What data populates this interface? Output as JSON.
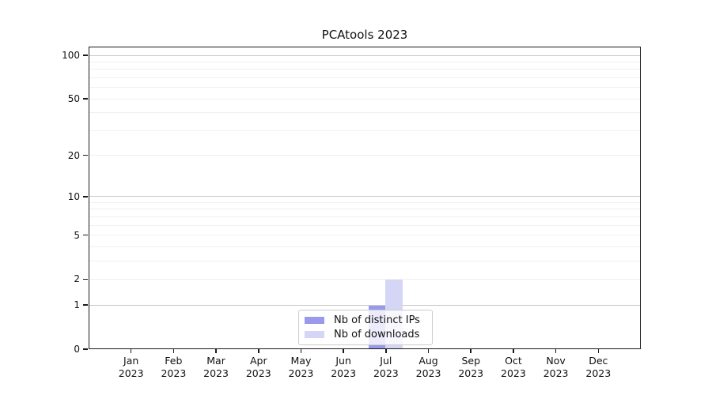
{
  "chart_data": {
    "type": "bar",
    "title": "PCAtools 2023",
    "categories": [
      "Jan",
      "Feb",
      "Mar",
      "Apr",
      "May",
      "Jun",
      "Jul",
      "Aug",
      "Sep",
      "Oct",
      "Nov",
      "Dec"
    ],
    "year_label": "2023",
    "series": [
      {
        "name": "Nb of distinct IPs",
        "color": "#9a9aec",
        "values": [
          0,
          0,
          0,
          0,
          0,
          0,
          1,
          0,
          0,
          0,
          0,
          0
        ]
      },
      {
        "name": "Nb of downloads",
        "color": "#d5d5f6",
        "values": [
          0,
          0,
          0,
          0,
          0,
          0,
          2,
          0,
          0,
          0,
          0,
          0
        ]
      }
    ],
    "yscale": "log1p",
    "yticks": [
      0,
      1,
      2,
      5,
      10,
      20,
      50,
      100
    ],
    "ylim": [
      0,
      115
    ],
    "xlabel": "",
    "ylabel": "",
    "grid": {
      "major_values": [
        1,
        10,
        100
      ],
      "minor_values": [
        2,
        3,
        4,
        5,
        6,
        7,
        8,
        9,
        20,
        30,
        40,
        50,
        60,
        70,
        80,
        90
      ],
      "major_color": "#c9c9c9",
      "minor_color": "#f0f0f0"
    },
    "legend_position": "lower center"
  }
}
